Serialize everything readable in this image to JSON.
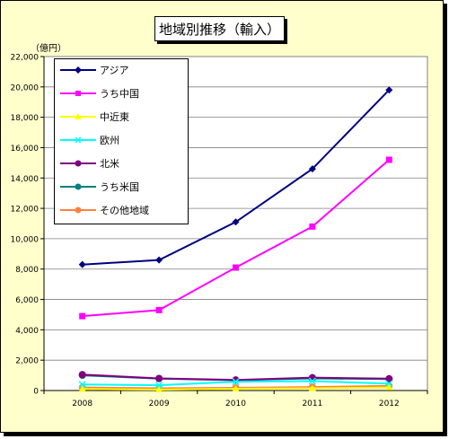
{
  "chart_data": {
    "type": "line",
    "title": "地域別推移（輸入）",
    "unit_label": "（億円）",
    "xlabel": "",
    "ylabel": "",
    "categories": [
      "2008",
      "2009",
      "2010",
      "2011",
      "2012"
    ],
    "ylim": [
      0,
      22000
    ],
    "yticks": [
      "0",
      "2,000",
      "4,000",
      "6,000",
      "8,000",
      "10,000",
      "12,000",
      "14,000",
      "16,000",
      "18,000",
      "20,000",
      "22,000"
    ],
    "grid": true,
    "legend_position": "top-left",
    "series": [
      {
        "name": "アジア",
        "color": "#000080",
        "marker": "diamond",
        "values": [
          8300,
          8600,
          11100,
          14600,
          19800
        ]
      },
      {
        "name": "うち中国",
        "color": "#ff00ff",
        "marker": "square",
        "values": [
          4900,
          5300,
          8100,
          10800,
          15200
        ]
      },
      {
        "name": "中近東",
        "color": "#ffff00",
        "marker": "triangle",
        "values": [
          100,
          60,
          120,
          150,
          200
        ]
      },
      {
        "name": "欧州",
        "color": "#00ffff",
        "marker": "x",
        "values": [
          400,
          350,
          580,
          620,
          450
        ]
      },
      {
        "name": "北米",
        "color": "#800080",
        "marker": "circle",
        "values": [
          1050,
          800,
          700,
          850,
          780
        ]
      },
      {
        "name": "うち米国",
        "color": "#008080",
        "marker": "circle",
        "values": [
          1000,
          780,
          680,
          800,
          750
        ]
      },
      {
        "name": "その他地域",
        "color": "#ff8040",
        "marker": "circle",
        "values": [
          200,
          150,
          180,
          230,
          300
        ]
      }
    ]
  }
}
